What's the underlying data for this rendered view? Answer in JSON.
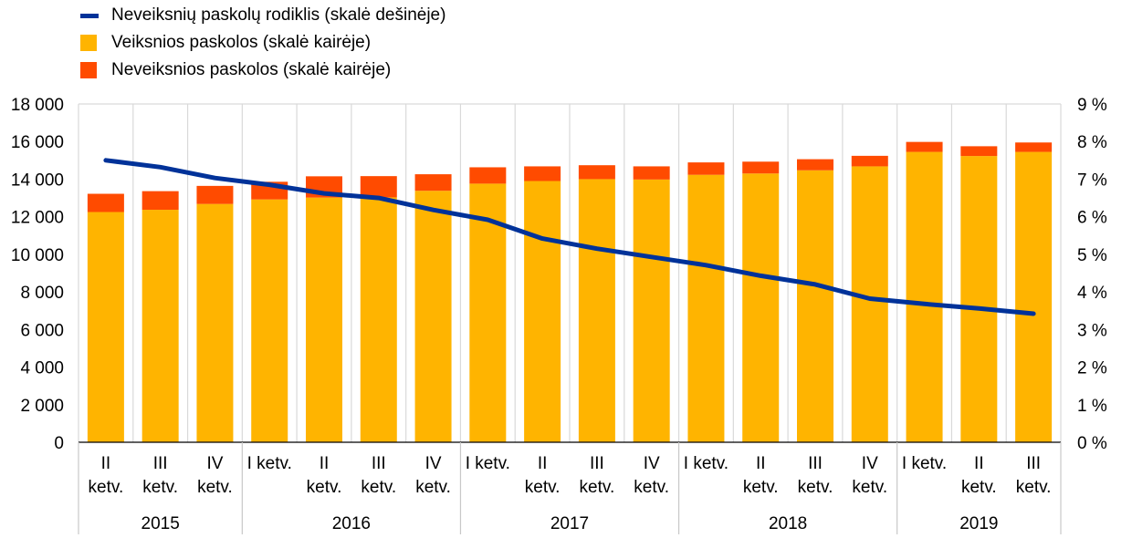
{
  "legend": {
    "ratio": "Neveiksnių paskolų rodiklis (skalė dešinėje)",
    "performing": "Veiksnios paskolos (skalė kairėje)",
    "nonperforming": "Neveiksnios paskolos (skalė kairėje)"
  },
  "colors": {
    "performing": "#FFB400",
    "nonperforming": "#FF4B00",
    "ratio": "#003299",
    "grid": "#d9d9d9"
  },
  "chart_data": {
    "type": "bar",
    "stacked": true,
    "categories": [
      [
        "II",
        "ketv."
      ],
      [
        "III",
        "ketv."
      ],
      [
        "IV",
        "ketv."
      ],
      [
        "I ketv."
      ],
      [
        "II",
        "ketv."
      ],
      [
        "III",
        "ketv."
      ],
      [
        "IV",
        "ketv."
      ],
      [
        "I ketv."
      ],
      [
        "II",
        "ketv."
      ],
      [
        "III",
        "ketv."
      ],
      [
        "IV",
        "ketv."
      ],
      [
        "I ketv."
      ],
      [
        "II",
        "ketv."
      ],
      [
        "III",
        "ketv."
      ],
      [
        "IV",
        "ketv."
      ],
      [
        "I ketv."
      ],
      [
        "II",
        "ketv."
      ],
      [
        "III",
        "ketv."
      ]
    ],
    "years": [
      {
        "label": "2015",
        "start": 0,
        "count": 3
      },
      {
        "label": "2016",
        "start": 3,
        "count": 4
      },
      {
        "label": "2017",
        "start": 7,
        "count": 4
      },
      {
        "label": "2018",
        "start": 11,
        "count": 4
      },
      {
        "label": "2019",
        "start": 15,
        "count": 3
      }
    ],
    "series": [
      {
        "name": "Veiksnios paskolos (skalė kairėje)",
        "axis": "left",
        "values": [
          12250,
          12370,
          12680,
          12920,
          13020,
          13030,
          13380,
          13760,
          13900,
          14000,
          13980,
          14230,
          14300,
          14470,
          14680,
          15450,
          15230,
          15450
        ]
      },
      {
        "name": "Neveiksnios paskolos (skalė kairėje)",
        "axis": "left",
        "values": [
          970,
          990,
          960,
          940,
          1130,
          1130,
          880,
          870,
          780,
          740,
          700,
          660,
          630,
          590,
          560,
          530,
          520,
          500
        ]
      },
      {
        "name": "Neveiksnių paskolų rodiklis (skalė dešinėje)",
        "axis": "right",
        "type": "line",
        "values": [
          7.5,
          7.32,
          7.03,
          6.85,
          6.62,
          6.5,
          6.18,
          5.92,
          5.42,
          5.15,
          4.93,
          4.71,
          4.43,
          4.2,
          3.82,
          3.68,
          3.56,
          3.42
        ]
      }
    ],
    "ylim_left": [
      0,
      18000
    ],
    "ylim_right": [
      0,
      9
    ],
    "yticks_left": [
      "0",
      "2 000",
      "4 000",
      "6 000",
      "8 000",
      "10 000",
      "12 000",
      "14 000",
      "16 000",
      "18 000"
    ],
    "yticks_right": [
      "0 %",
      "1 %",
      "2 %",
      "3 %",
      "4 %",
      "5 %",
      "6 %",
      "7 %",
      "8 %",
      "9 %"
    ],
    "grid": true,
    "legend_position": "top-left"
  }
}
